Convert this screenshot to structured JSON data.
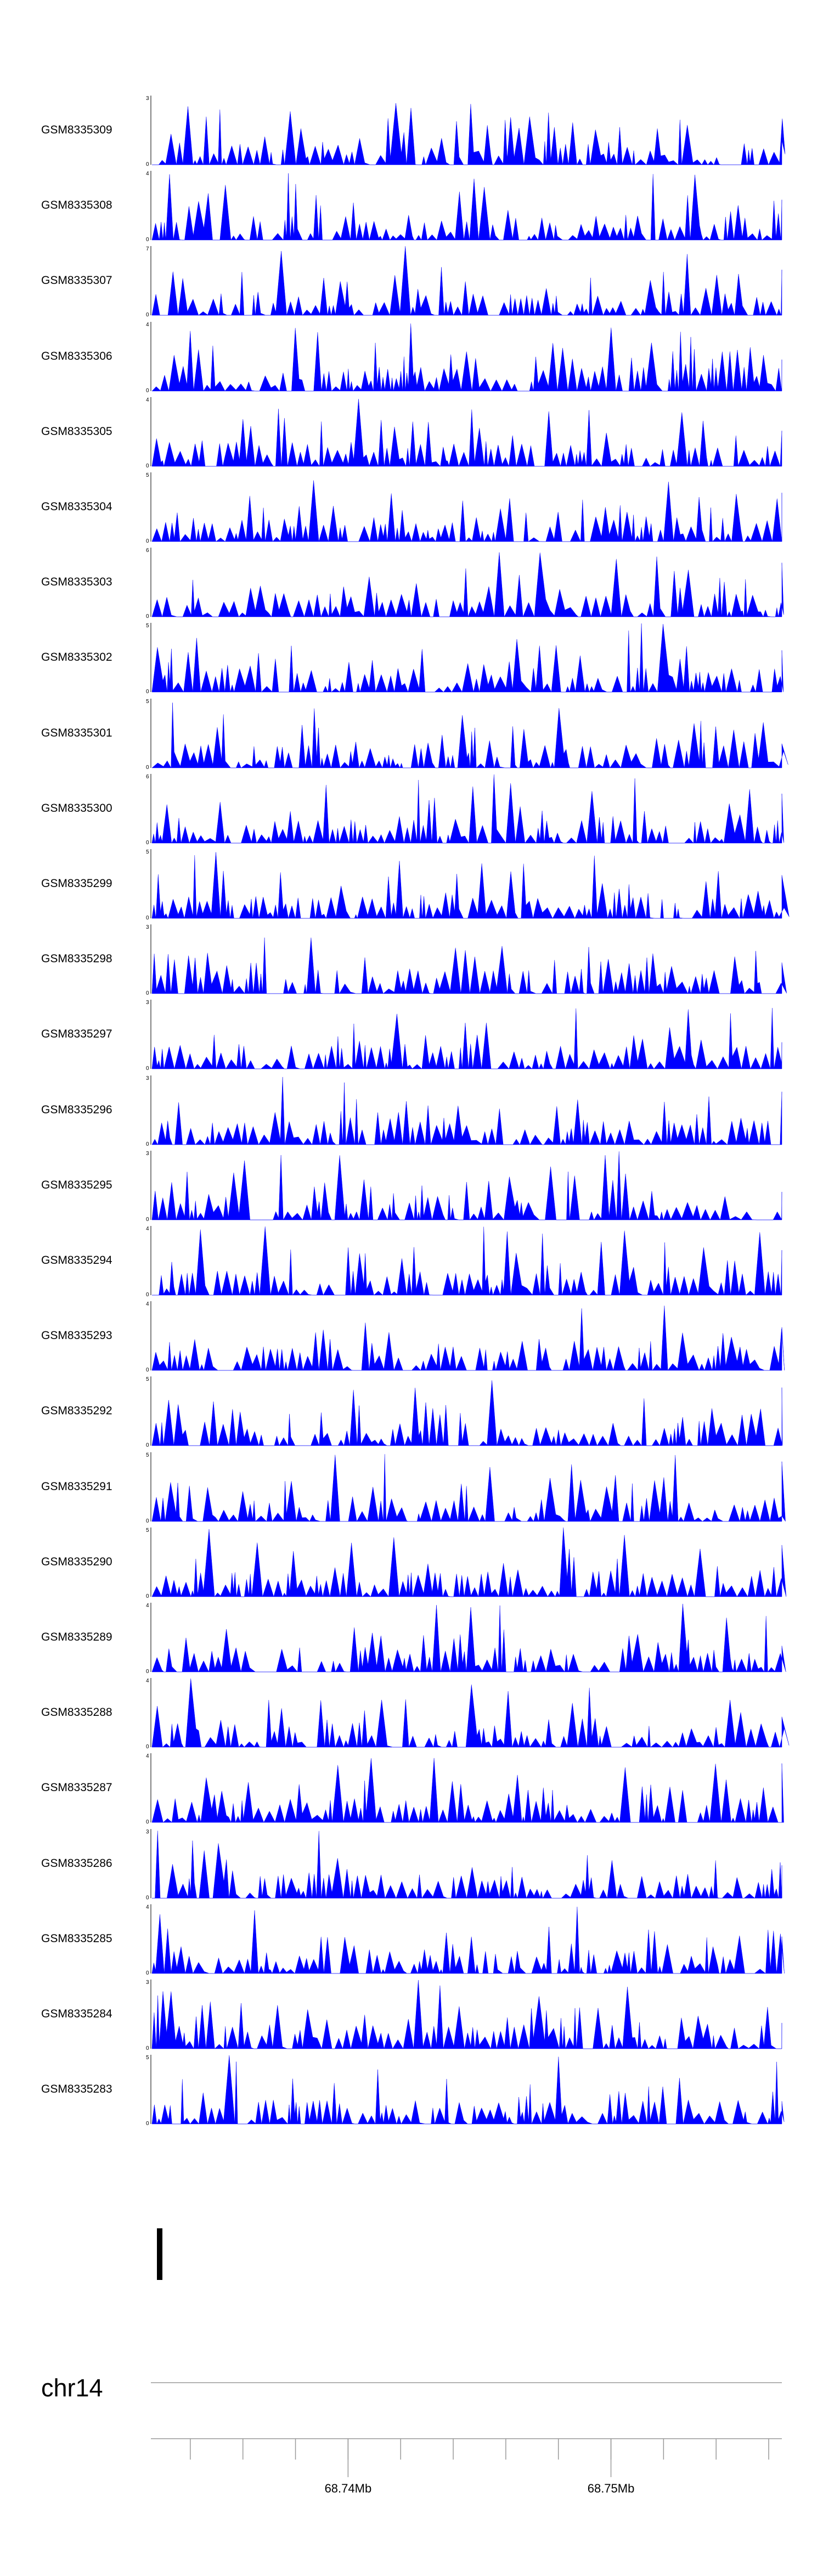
{
  "colors": {
    "signal": "#0000ff",
    "axis": "#000000",
    "ideogram_line": "#999999"
  },
  "chart_data": {
    "type": "area",
    "region": {
      "chromosome": "chr14",
      "start_mb": 68.7325,
      "end_mb": 68.7565
    },
    "x_tick_labels": [
      {
        "label": "68.74Mb",
        "value": 68.74
      },
      {
        "label": "68.75Mb",
        "value": 68.75
      }
    ],
    "minor_tick_step_mb": 0.002,
    "tracks": [
      {
        "name": "GSM8335309",
        "ymax": 3,
        "ymax_label": "3",
        "ymin_label": "0"
      },
      {
        "name": "GSM8335308",
        "ymax": 4,
        "ymax_label": "4",
        "ymin_label": "0"
      },
      {
        "name": "GSM8335307",
        "ymax": 7,
        "ymax_label": "7",
        "ymin_label": "0"
      },
      {
        "name": "GSM8335306",
        "ymax": 4,
        "ymax_label": "4",
        "ymin_label": "0"
      },
      {
        "name": "GSM8335305",
        "ymax": 4,
        "ymax_label": "4",
        "ymin_label": "0"
      },
      {
        "name": "GSM8335304",
        "ymax": 5,
        "ymax_label": "5",
        "ymin_label": "0"
      },
      {
        "name": "GSM8335303",
        "ymax": 6,
        "ymax_label": "6",
        "ymin_label": "0"
      },
      {
        "name": "GSM8335302",
        "ymax": 5,
        "ymax_label": "5",
        "ymin_label": "0"
      },
      {
        "name": "GSM8335301",
        "ymax": 5,
        "ymax_label": "5",
        "ymin_label": "0"
      },
      {
        "name": "GSM8335300",
        "ymax": 6,
        "ymax_label": "6",
        "ymin_label": "0"
      },
      {
        "name": "GSM8335299",
        "ymax": 5,
        "ymax_label": "5",
        "ymin_label": "0"
      },
      {
        "name": "GSM8335298",
        "ymax": 3,
        "ymax_label": "3",
        "ymin_label": "0"
      },
      {
        "name": "GSM8335297",
        "ymax": 3,
        "ymax_label": "3",
        "ymin_label": "0"
      },
      {
        "name": "GSM8335296",
        "ymax": 3,
        "ymax_label": "3",
        "ymin_label": "0"
      },
      {
        "name": "GSM8335295",
        "ymax": 3,
        "ymax_label": "3",
        "ymin_label": "0"
      },
      {
        "name": "GSM8335294",
        "ymax": 4,
        "ymax_label": "4",
        "ymin_label": "0"
      },
      {
        "name": "GSM8335293",
        "ymax": 4,
        "ymax_label": "4",
        "ymin_label": "0"
      },
      {
        "name": "GSM8335292",
        "ymax": 5,
        "ymax_label": "5",
        "ymin_label": "0"
      },
      {
        "name": "GSM8335291",
        "ymax": 5,
        "ymax_label": "5",
        "ymin_label": "0"
      },
      {
        "name": "GSM8335290",
        "ymax": 5,
        "ymax_label": "5",
        "ymin_label": "0"
      },
      {
        "name": "GSM8335289",
        "ymax": 4,
        "ymax_label": "4",
        "ymin_label": "0"
      },
      {
        "name": "GSM8335288",
        "ymax": 4,
        "ymax_label": "4",
        "ymin_label": "0"
      },
      {
        "name": "GSM8335287",
        "ymax": 4,
        "ymax_label": "4",
        "ymin_label": "0"
      },
      {
        "name": "GSM8335286",
        "ymax": 3,
        "ymax_label": "3",
        "ymin_label": "0"
      },
      {
        "name": "GSM8335285",
        "ymax": 4,
        "ymax_label": "4",
        "ymin_label": "0"
      },
      {
        "name": "GSM8335284",
        "ymax": 3,
        "ymax_label": "3",
        "ymin_label": "0"
      },
      {
        "name": "GSM8335283",
        "ymax": 5,
        "ymax_label": "5",
        "ymin_label": "0"
      }
    ]
  },
  "chrom": {
    "label": "chr14"
  }
}
